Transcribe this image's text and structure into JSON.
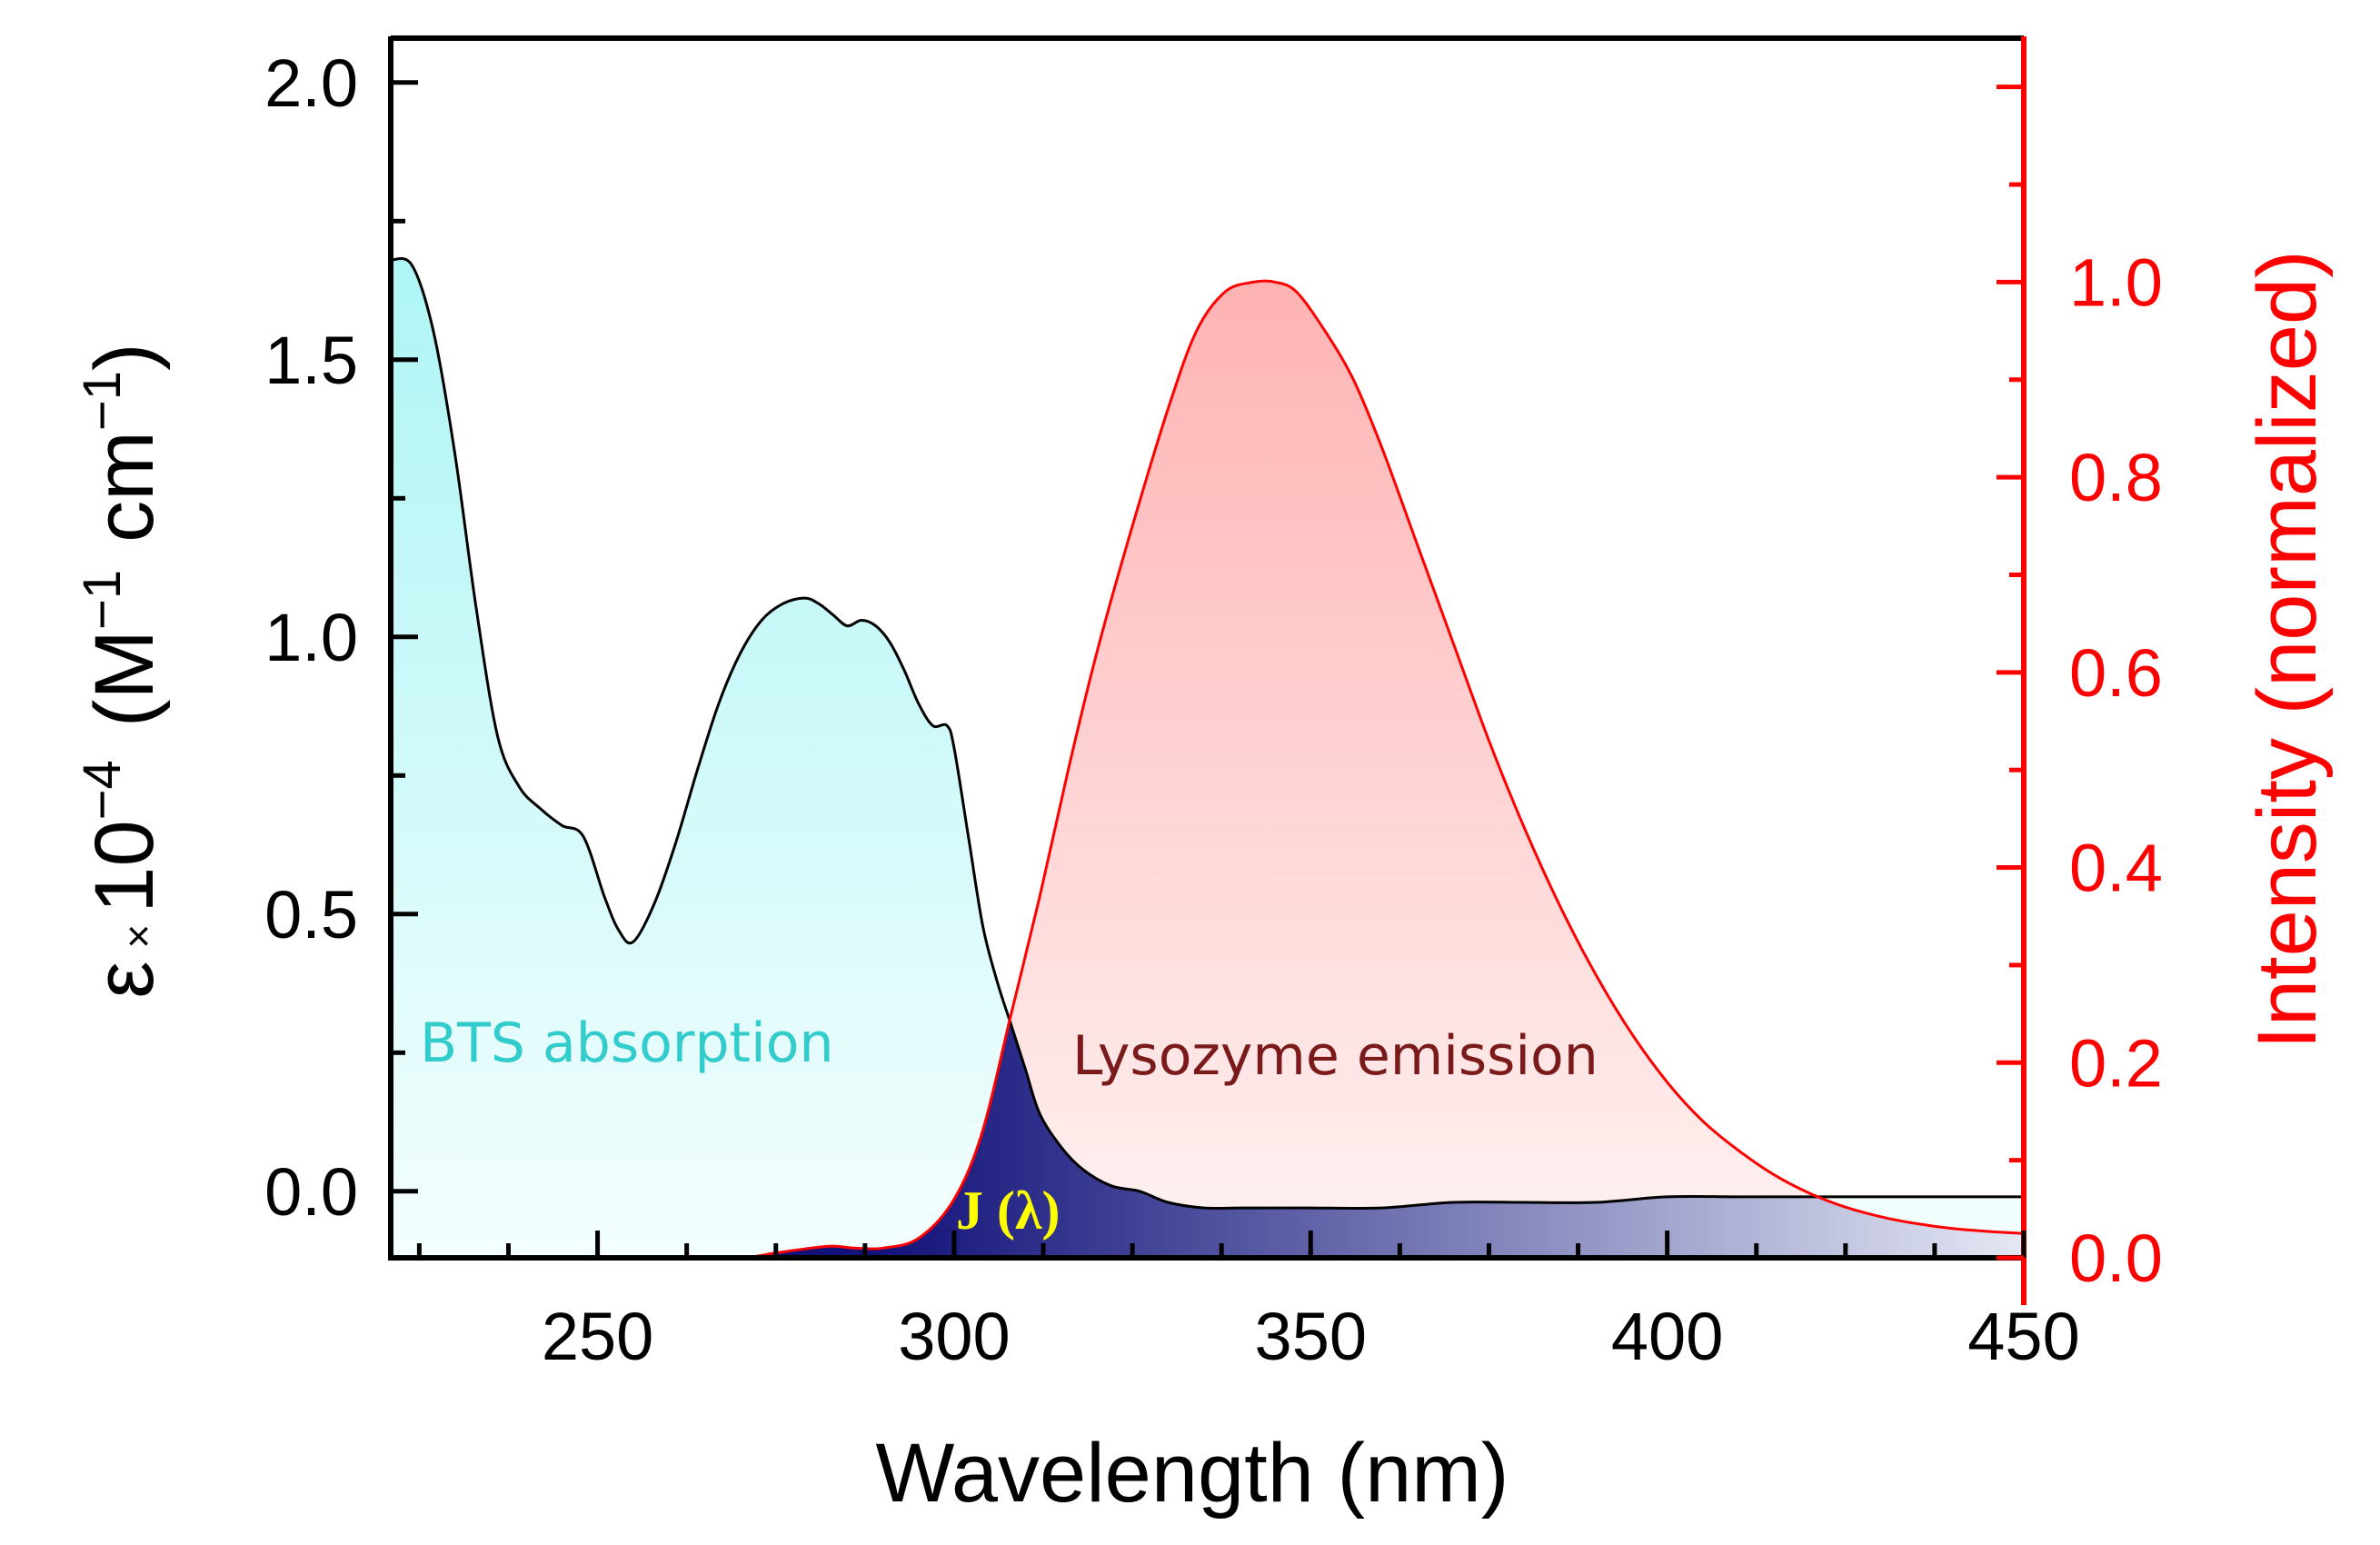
{
  "colors": {
    "left_axis": "#000000",
    "right_axis": "#ff0000",
    "absorption_fill": "#aef5f5",
    "emission_fill": "#ffb3b3",
    "overlap_fill": "#0a0a6e",
    "absorption_label": "#33cccc",
    "emission_label": "#7a1a1a",
    "j_label": "#ffff00"
  },
  "chart_data": {
    "type": "area",
    "xlabel": "Wavelength (nm)",
    "ylabel_left": {
      "symbol": "ε",
      "times": "×",
      "ten": "10",
      "exp": "−4",
      "unit_open": "(M",
      "unit_exp1": "−1",
      "unit_mid": "cm",
      "unit_exp2": "−1",
      "unit_close": ")"
    },
    "ylabel_right": "Intensity (normalized)",
    "xlim": [
      221,
      450
    ],
    "ylim_left": [
      -0.12,
      2.08
    ],
    "ylim_right": [
      0.0,
      1.25
    ],
    "x_ticks": [
      250,
      300,
      350,
      400,
      450
    ],
    "x_tick_labels": [
      "250",
      "300",
      "350",
      "400",
      "450"
    ],
    "y_left_ticks": [
      0.0,
      0.5,
      1.0,
      1.5,
      2.0
    ],
    "y_left_tick_labels": [
      "0.0",
      "0.5",
      "1.0",
      "1.5",
      "2.0"
    ],
    "y_right_ticks": [
      0.0,
      0.2,
      0.4,
      0.6,
      0.8,
      1.0
    ],
    "y_right_tick_labels": [
      "0.0",
      "0.2",
      "0.4",
      "0.6",
      "0.8",
      "1.0"
    ],
    "series": [
      {
        "name": "BTS absorption",
        "axis": "left",
        "x": [
          221,
          224,
          227,
          230,
          233,
          236,
          239,
          242,
          245,
          248,
          251,
          253,
          255,
          258,
          261,
          264,
          267,
          270,
          273,
          276,
          279,
          281,
          283,
          285,
          287,
          289,
          291,
          293,
          295,
          297,
          299,
          300,
          302,
          304,
          306,
          308,
          310,
          312,
          315,
          318,
          322,
          326,
          330,
          335,
          340,
          345,
          350,
          360,
          370,
          380,
          390,
          400,
          410,
          420,
          430,
          440,
          450
        ],
        "y": [
          1.68,
          1.67,
          1.55,
          1.33,
          1.05,
          0.82,
          0.73,
          0.69,
          0.66,
          0.64,
          0.53,
          0.47,
          0.45,
          0.52,
          0.63,
          0.76,
          0.88,
          0.97,
          1.03,
          1.06,
          1.07,
          1.06,
          1.04,
          1.02,
          1.03,
          1.02,
          0.99,
          0.94,
          0.88,
          0.84,
          0.84,
          0.8,
          0.64,
          0.48,
          0.38,
          0.3,
          0.22,
          0.14,
          0.08,
          0.04,
          0.01,
          0.0,
          -0.02,
          -0.03,
          -0.03,
          -0.03,
          -0.03,
          -0.03,
          -0.02,
          -0.02,
          -0.02,
          -0.01,
          -0.01,
          -0.01,
          -0.01,
          -0.01,
          -0.01
        ]
      },
      {
        "name": "Lysozyme emission",
        "axis": "right",
        "x": [
          221,
          260,
          270,
          275,
          280,
          283,
          286,
          290,
          295,
          300,
          304,
          308,
          312,
          316,
          320,
          325,
          330,
          334,
          338,
          342,
          345,
          348,
          352,
          356,
          360,
          365,
          370,
          375,
          380,
          385,
          390,
          395,
          400,
          405,
          410,
          415,
          420,
          425,
          430,
          435,
          440,
          445,
          450
        ],
        "y": [
          0.0,
          0.0,
          0.0,
          0.005,
          0.01,
          0.012,
          0.01,
          0.01,
          0.02,
          0.06,
          0.13,
          0.25,
          0.37,
          0.5,
          0.62,
          0.75,
          0.87,
          0.95,
          0.99,
          1.0,
          1.0,
          0.99,
          0.95,
          0.9,
          0.83,
          0.73,
          0.63,
          0.53,
          0.44,
          0.36,
          0.29,
          0.23,
          0.18,
          0.14,
          0.11,
          0.085,
          0.066,
          0.052,
          0.042,
          0.035,
          0.03,
          0.027,
          0.025
        ]
      }
    ],
    "overlap_label": "J (λ)"
  }
}
